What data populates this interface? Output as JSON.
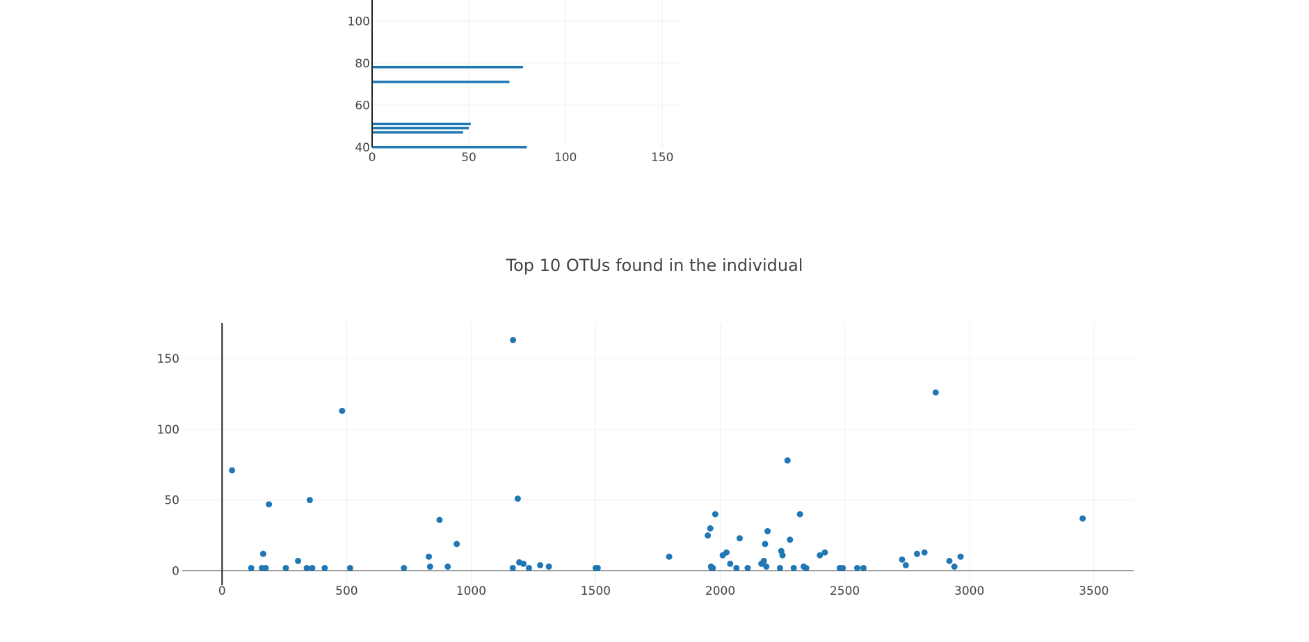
{
  "colors": {
    "marker": "#1f77b4",
    "grid": "#eeeeee",
    "axis": "#444444",
    "text": "#444444"
  },
  "chart_data": [
    {
      "type": "bar",
      "orientation": "h",
      "title": "",
      "xlabel": "",
      "ylabel": "",
      "xlim": [
        0,
        160
      ],
      "ylim": [
        40,
        110
      ],
      "x_ticks": [
        0,
        50,
        100,
        150
      ],
      "y_ticks": [
        40,
        60,
        80,
        100
      ],
      "grid": true,
      "bars": [
        {
          "y": 40,
          "value": 80
        },
        {
          "y": 47,
          "value": 47
        },
        {
          "y": 49,
          "value": 50
        },
        {
          "y": 51,
          "value": 51
        },
        {
          "y": 71,
          "value": 71
        },
        {
          "y": 78,
          "value": 78
        }
      ]
    },
    {
      "type": "scatter",
      "title": "Top 10 OTUs found in the individual",
      "xlabel": "",
      "ylabel": "",
      "xlim": [
        -160,
        3660
      ],
      "ylim": [
        -10,
        175
      ],
      "x_ticks": [
        0,
        500,
        1000,
        1500,
        2000,
        2500,
        3000,
        3500
      ],
      "y_ticks": [
        0,
        50,
        100,
        150
      ],
      "grid": true,
      "points": [
        [
          40,
          71
        ],
        [
          117,
          2
        ],
        [
          160,
          2
        ],
        [
          165,
          12
        ],
        [
          175,
          2
        ],
        [
          188,
          47
        ],
        [
          256,
          2
        ],
        [
          305,
          7
        ],
        [
          340,
          2
        ],
        [
          352,
          50
        ],
        [
          362,
          2
        ],
        [
          412,
          2
        ],
        [
          482,
          113
        ],
        [
          514,
          2
        ],
        [
          730,
          2
        ],
        [
          830,
          10
        ],
        [
          835,
          3
        ],
        [
          873,
          36
        ],
        [
          906,
          3
        ],
        [
          942,
          19
        ],
        [
          1167,
          2
        ],
        [
          1168,
          163
        ],
        [
          1187,
          51
        ],
        [
          1193,
          6
        ],
        [
          1210,
          5
        ],
        [
          1232,
          2
        ],
        [
          1277,
          4
        ],
        [
          1312,
          3
        ],
        [
          1500,
          2
        ],
        [
          1508,
          2
        ],
        [
          1795,
          10
        ],
        [
          1950,
          25
        ],
        [
          1960,
          30
        ],
        [
          1963,
          3
        ],
        [
          1965,
          2
        ],
        [
          1970,
          2
        ],
        [
          1980,
          40
        ],
        [
          2010,
          11
        ],
        [
          2025,
          13
        ],
        [
          2040,
          5
        ],
        [
          2065,
          2
        ],
        [
          2078,
          23
        ],
        [
          2110,
          2
        ],
        [
          2165,
          5
        ],
        [
          2175,
          7
        ],
        [
          2180,
          19
        ],
        [
          2185,
          3
        ],
        [
          2190,
          28
        ],
        [
          2240,
          2
        ],
        [
          2245,
          14
        ],
        [
          2250,
          11
        ],
        [
          2270,
          78
        ],
        [
          2280,
          22
        ],
        [
          2295,
          2
        ],
        [
          2320,
          40
        ],
        [
          2335,
          3
        ],
        [
          2345,
          2
        ],
        [
          2400,
          11
        ],
        [
          2420,
          13
        ],
        [
          2480,
          2
        ],
        [
          2492,
          2
        ],
        [
          2550,
          2
        ],
        [
          2575,
          2
        ],
        [
          2730,
          8
        ],
        [
          2745,
          4
        ],
        [
          2790,
          12
        ],
        [
          2820,
          13
        ],
        [
          2865,
          126
        ],
        [
          2920,
          7
        ],
        [
          2940,
          3
        ],
        [
          2965,
          10
        ],
        [
          3455,
          37
        ]
      ]
    }
  ]
}
